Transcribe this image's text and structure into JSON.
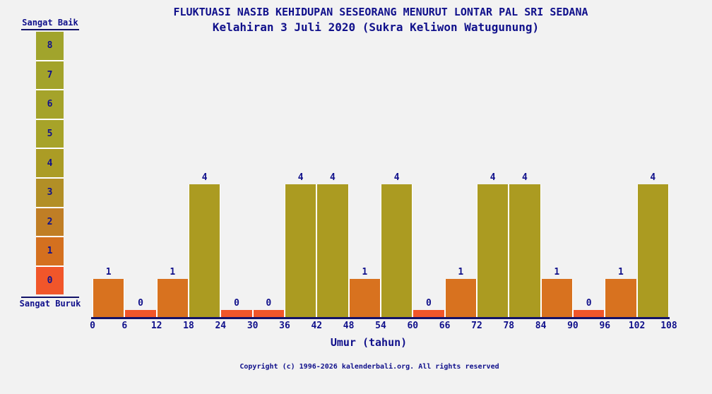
{
  "header": {
    "title": "FLUKTUASI NASIB KEHIDUPAN SESEORANG MENURUT LONTAR PAL SRI SEDANA",
    "subtitle": "Kelahiran 3 Juli 2020 (Sukra Keliwon Watugunung)"
  },
  "scale": {
    "top_label": "Sangat Baik",
    "bottom_label": "Sangat Buruk",
    "levels": [
      {
        "value": "8",
        "color": "#a1a42c"
      },
      {
        "value": "7",
        "color": "#a3a32b"
      },
      {
        "value": "6",
        "color": "#a5a32a"
      },
      {
        "value": "5",
        "color": "#a7a329"
      },
      {
        "value": "4",
        "color": "#ab9c25"
      },
      {
        "value": "3",
        "color": "#b28f26"
      },
      {
        "value": "2",
        "color": "#c07e25"
      },
      {
        "value": "1",
        "color": "#d4701f"
      },
      {
        "value": "0",
        "color": "#f1562a"
      }
    ]
  },
  "chart_data": {
    "type": "bar",
    "title": "FLUKTUASI NASIB KEHIDUPAN SESEORANG MENURUT LONTAR PAL SRI SEDANA",
    "subtitle": "Kelahiran 3 Juli 2020 (Sukra Keliwon Watugunung)",
    "xlabel": "Umur (tahun)",
    "ylabel": "",
    "ylim": [
      0,
      8
    ],
    "bin_width_years": 6,
    "x_ticks": [
      0,
      6,
      12,
      18,
      24,
      30,
      36,
      42,
      48,
      54,
      60,
      66,
      72,
      78,
      84,
      90,
      96,
      102,
      108
    ],
    "bins": [
      {
        "range": "0-6",
        "value": 1
      },
      {
        "range": "6-12",
        "value": 0
      },
      {
        "range": "12-18",
        "value": 1
      },
      {
        "range": "18-24",
        "value": 4
      },
      {
        "range": "24-30",
        "value": 0
      },
      {
        "range": "30-36",
        "value": 0
      },
      {
        "range": "36-42",
        "value": 4
      },
      {
        "range": "42-48",
        "value": 4
      },
      {
        "range": "48-54",
        "value": 1
      },
      {
        "range": "54-60",
        "value": 4
      },
      {
        "range": "60-66",
        "value": 0
      },
      {
        "range": "66-72",
        "value": 1
      },
      {
        "range": "72-78",
        "value": 4
      },
      {
        "range": "78-84",
        "value": 4
      },
      {
        "range": "84-90",
        "value": 1
      },
      {
        "range": "90-96",
        "value": 0
      },
      {
        "range": "96-102",
        "value": 1
      },
      {
        "range": "102-108",
        "value": 4
      }
    ],
    "value_colors": {
      "0": "#f1562a",
      "1": "#d8721f",
      "4": "#ab9b21"
    }
  },
  "footer": {
    "copyright": "Copyright (c) 1996-2026 kalenderbali.org. All rights reserved"
  },
  "colors": {
    "background": "#f2f2f2",
    "text_navy": "#10108b",
    "axis_navy": "#121268"
  }
}
